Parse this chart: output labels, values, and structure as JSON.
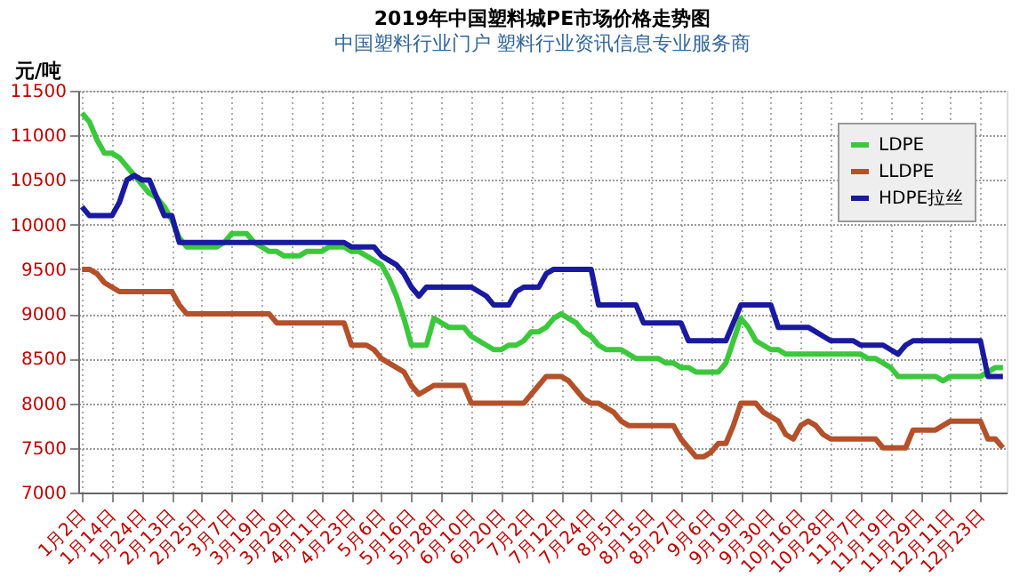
{
  "chart_data": {
    "type": "line",
    "title": "2019年中国塑料城PE市场价格走势图",
    "ylabel": "元/吨",
    "annotations": [
      "中国塑料行业门户 塑料行业资讯信息专业服务商"
    ],
    "ylim": [
      7000,
      11500
    ],
    "yticks": [
      7000,
      7500,
      8000,
      8500,
      9000,
      9500,
      10000,
      10500,
      11000,
      11500
    ],
    "categories": [
      "1月2日",
      null,
      null,
      null,
      "1月14日",
      null,
      null,
      null,
      "1月24日",
      null,
      null,
      null,
      "2月13日",
      null,
      null,
      null,
      "2月25日",
      null,
      null,
      null,
      "3月7日",
      null,
      null,
      null,
      "3月19日",
      null,
      null,
      null,
      "3月29日",
      null,
      null,
      null,
      "4月11日",
      null,
      null,
      null,
      "4月23日",
      null,
      null,
      null,
      "5月6日",
      null,
      null,
      null,
      "5月16日",
      null,
      null,
      null,
      "5月28日",
      null,
      null,
      null,
      "6月10日",
      null,
      null,
      null,
      "6月20日",
      null,
      null,
      null,
      "7月2日",
      null,
      null,
      null,
      "7月12日",
      null,
      null,
      null,
      "7月24日",
      null,
      null,
      null,
      "8月5日",
      null,
      null,
      null,
      "8月15日",
      null,
      null,
      null,
      "8月27日",
      null,
      null,
      null,
      "9月6日",
      null,
      null,
      null,
      "9月19日",
      null,
      null,
      null,
      "9月30日",
      null,
      null,
      null,
      "10月16日",
      null,
      null,
      null,
      "10月28日",
      null,
      null,
      null,
      "11月7日",
      null,
      null,
      null,
      "11月19日",
      null,
      null,
      null,
      "11月29日",
      null,
      null,
      null,
      "12月11日",
      null,
      null,
      null,
      "12月23日",
      null,
      null,
      null
    ],
    "grid": true,
    "legend": "top right",
    "marker": "none",
    "line_style": "solid",
    "series": [
      {
        "name": "LDPE",
        "color": "#3cc83c",
        "values": [
          11250,
          11150,
          10950,
          10800,
          10800,
          10750,
          10650,
          10550,
          10450,
          10350,
          10300,
          10200,
          10050,
          9850,
          9750,
          9750,
          9750,
          9750,
          9750,
          9800,
          9900,
          9900,
          9900,
          9800,
          9750,
          9700,
          9700,
          9650,
          9650,
          9650,
          9700,
          9700,
          9700,
          9750,
          9750,
          9750,
          9700,
          9700,
          9650,
          9600,
          9550,
          9400,
          9200,
          8950,
          8650,
          8650,
          8650,
          8950,
          8900,
          8850,
          8850,
          8850,
          8750,
          8700,
          8650,
          8600,
          8600,
          8650,
          8650,
          8700,
          8800,
          8800,
          8850,
          8950,
          9000,
          8950,
          8900,
          8800,
          8750,
          8650,
          8600,
          8600,
          8600,
          8550,
          8500,
          8500,
          8500,
          8500,
          8450,
          8450,
          8400,
          8400,
          8350,
          8350,
          8350,
          8350,
          8450,
          8700,
          8950,
          8850,
          8700,
          8650,
          8600,
          8600,
          8550,
          8550,
          8550,
          8550,
          8550,
          8550,
          8550,
          8550,
          8550,
          8550,
          8550,
          8500,
          8500,
          8450,
          8400,
          8300,
          8300,
          8300,
          8300,
          8300,
          8300,
          8250,
          8300,
          8300,
          8300,
          8300,
          8300,
          8350,
          8400,
          8400
        ]
      },
      {
        "name": "LLDPE",
        "color": "#b4502a",
        "values": [
          9500,
          9500,
          9450,
          9350,
          9300,
          9250,
          9250,
          9250,
          9250,
          9250,
          9250,
          9250,
          9250,
          9100,
          9000,
          9000,
          9000,
          9000,
          9000,
          9000,
          9000,
          9000,
          9000,
          9000,
          9000,
          9000,
          8900,
          8900,
          8900,
          8900,
          8900,
          8900,
          8900,
          8900,
          8900,
          8900,
          8650,
          8650,
          8650,
          8600,
          8500,
          8450,
          8400,
          8350,
          8200,
          8100,
          8150,
          8200,
          8200,
          8200,
          8200,
          8200,
          8000,
          8000,
          8000,
          8000,
          8000,
          8000,
          8000,
          8000,
          8100,
          8200,
          8300,
          8300,
          8300,
          8250,
          8150,
          8050,
          8000,
          8000,
          7950,
          7900,
          7800,
          7750,
          7750,
          7750,
          7750,
          7750,
          7750,
          7750,
          7600,
          7500,
          7400,
          7400,
          7450,
          7550,
          7550,
          7750,
          8000,
          8000,
          8000,
          7900,
          7850,
          7800,
          7650,
          7600,
          7750,
          7800,
          7750,
          7650,
          7600,
          7600,
          7600,
          7600,
          7600,
          7600,
          7600,
          7500,
          7500,
          7500,
          7500,
          7700,
          7700,
          7700,
          7700,
          7750,
          7800,
          7800,
          7800,
          7800,
          7800,
          7600,
          7600,
          7500
        ]
      },
      {
        "name": "HDPE拉丝",
        "color": "#1a1aa0",
        "values": [
          10200,
          10100,
          10100,
          10100,
          10100,
          10250,
          10500,
          10550,
          10500,
          10500,
          10300,
          10100,
          10100,
          9800,
          9800,
          9800,
          9800,
          9800,
          9800,
          9800,
          9800,
          9800,
          9800,
          9800,
          9800,
          9800,
          9800,
          9800,
          9800,
          9800,
          9800,
          9800,
          9800,
          9800,
          9800,
          9800,
          9750,
          9750,
          9750,
          9750,
          9650,
          9600,
          9550,
          9450,
          9300,
          9200,
          9300,
          9300,
          9300,
          9300,
          9300,
          9300,
          9300,
          9250,
          9200,
          9100,
          9100,
          9100,
          9250,
          9300,
          9300,
          9300,
          9450,
          9500,
          9500,
          9500,
          9500,
          9500,
          9500,
          9100,
          9100,
          9100,
          9100,
          9100,
          9100,
          8900,
          8900,
          8900,
          8900,
          8900,
          8900,
          8700,
          8700,
          8700,
          8700,
          8700,
          8700,
          8900,
          9100,
          9100,
          9100,
          9100,
          9100,
          8850,
          8850,
          8850,
          8850,
          8850,
          8800,
          8750,
          8700,
          8700,
          8700,
          8700,
          8650,
          8650,
          8650,
          8650,
          8600,
          8550,
          8650,
          8700,
          8700,
          8700,
          8700,
          8700,
          8700,
          8700,
          8700,
          8700,
          8700,
          8300,
          8300,
          8300
        ]
      }
    ]
  }
}
